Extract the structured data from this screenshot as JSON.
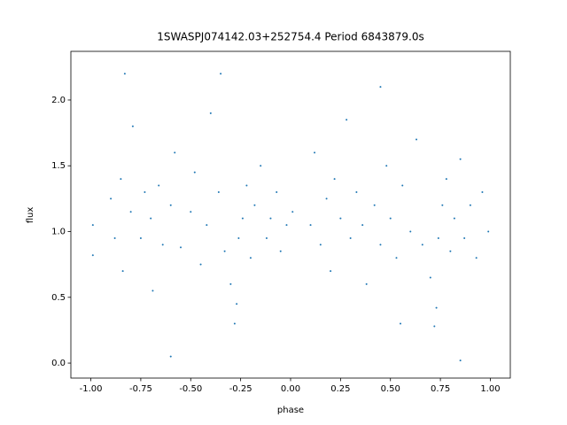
{
  "chart_data": {
    "type": "scatter",
    "title": "1SWASPJ074142.03+252754.4 Period 6843879.0s",
    "x_label": "phase",
    "y_label": "flux",
    "color": "#1f77b4",
    "xlim": [
      -1.1,
      1.1
    ],
    "ylim": [
      -0.114,
      2.37
    ],
    "xticks": [
      {
        "value": -1,
        "label": "-1.00"
      },
      {
        "value": -0.75,
        "label": "-0.75"
      },
      {
        "value": -0.5,
        "label": "-0.50"
      },
      {
        "value": -0.25,
        "label": "-0.25"
      },
      {
        "value": 0,
        "label": "0.00"
      },
      {
        "value": 0.25,
        "label": "0.25"
      },
      {
        "value": 0.5,
        "label": "0.50"
      },
      {
        "value": 0.75,
        "label": "0.75"
      },
      {
        "value": 1,
        "label": "1.00"
      }
    ],
    "yticks": [
      {
        "value": 0,
        "label": "0.0"
      },
      {
        "value": 0.5,
        "label": "0.5"
      },
      {
        "value": 1,
        "label": "1.0"
      },
      {
        "value": 1.5,
        "label": "1.5"
      },
      {
        "value": 2,
        "label": "2.0"
      }
    ],
    "x": [
      -0.99,
      -0.99,
      -0.9,
      -0.88,
      -0.85,
      -0.84,
      -0.8,
      -0.79,
      -0.75,
      -0.73,
      -0.7,
      -0.69,
      -0.66,
      -0.64,
      -0.6,
      -0.58,
      -0.55,
      -0.5,
      -0.48,
      -0.45,
      -0.42,
      -0.4,
      -0.36,
      -0.33,
      -0.3,
      -0.28,
      -0.27,
      -0.26,
      -0.24,
      -0.22,
      -0.2,
      -0.18,
      -0.15,
      -0.12,
      -0.1,
      -0.07,
      -0.05,
      -0.02,
      0.01,
      0.1,
      0.12,
      0.15,
      0.18,
      0.2,
      0.22,
      0.25,
      0.28,
      0.3,
      0.33,
      0.36,
      0.38,
      0.42,
      0.45,
      0.48,
      0.5,
      0.53,
      0.56,
      0.6,
      0.63,
      0.66,
      0.7,
      0.72,
      0.73,
      0.74,
      0.76,
      0.78,
      0.8,
      0.82,
      0.85,
      0.87,
      0.9,
      0.93,
      0.96,
      0.99,
      -0.6,
      0.45,
      -0.35,
      0.85,
      -0.83,
      0.55
    ],
    "values": [
      1.05,
      0.82,
      1.25,
      0.95,
      1.4,
      0.7,
      1.15,
      1.8,
      0.95,
      1.3,
      1.1,
      0.55,
      1.35,
      0.9,
      1.2,
      1.6,
      0.88,
      1.15,
      1.45,
      0.75,
      1.05,
      1.9,
      1.3,
      0.85,
      0.6,
      0.3,
      0.45,
      0.95,
      1.1,
      1.35,
      0.8,
      1.2,
      1.5,
      0.95,
      1.1,
      1.3,
      0.85,
      1.05,
      1.15,
      1.05,
      1.6,
      0.9,
      1.25,
      0.7,
      1.4,
      1.1,
      1.85,
      0.95,
      1.3,
      1.05,
      0.6,
      1.2,
      0.9,
      1.5,
      1.1,
      0.8,
      1.35,
      1.0,
      1.7,
      0.9,
      0.65,
      0.28,
      0.42,
      0.95,
      1.2,
      1.4,
      0.85,
      1.1,
      1.55,
      0.95,
      1.2,
      0.8,
      1.3,
      1.0,
      0.05,
      2.1,
      2.2,
      0.02,
      2.2,
      0.3
    ]
  }
}
